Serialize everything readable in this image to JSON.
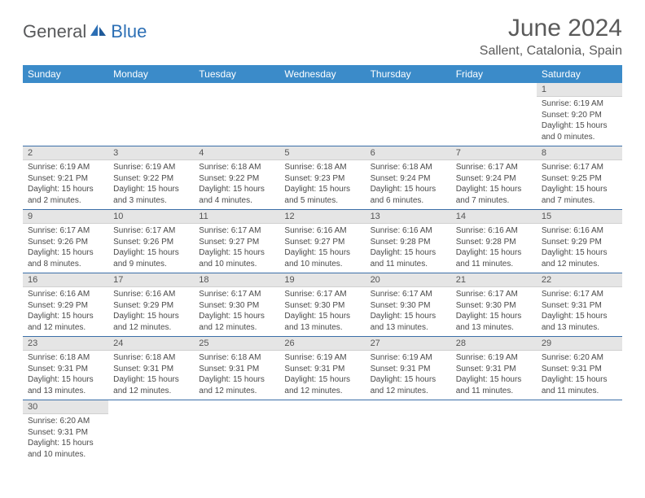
{
  "logo": {
    "text_gray": "General",
    "text_blue": "Blue"
  },
  "title": "June 2024",
  "location": "Sallent, Catalonia, Spain",
  "day_headers": [
    "Sunday",
    "Monday",
    "Tuesday",
    "Wednesday",
    "Thursday",
    "Friday",
    "Saturday"
  ],
  "colors": {
    "header_bg": "#3b8bc9",
    "header_text": "#ffffff",
    "daynum_bg": "#e5e5e5",
    "border": "#3b6fa8",
    "text": "#4a4a4a",
    "title_text": "#5a5a5a"
  },
  "weeks": [
    [
      null,
      null,
      null,
      null,
      null,
      null,
      {
        "num": "1",
        "sunrise": "Sunrise: 6:19 AM",
        "sunset": "Sunset: 9:20 PM",
        "daylight1": "Daylight: 15 hours",
        "daylight2": "and 0 minutes."
      }
    ],
    [
      {
        "num": "2",
        "sunrise": "Sunrise: 6:19 AM",
        "sunset": "Sunset: 9:21 PM",
        "daylight1": "Daylight: 15 hours",
        "daylight2": "and 2 minutes."
      },
      {
        "num": "3",
        "sunrise": "Sunrise: 6:19 AM",
        "sunset": "Sunset: 9:22 PM",
        "daylight1": "Daylight: 15 hours",
        "daylight2": "and 3 minutes."
      },
      {
        "num": "4",
        "sunrise": "Sunrise: 6:18 AM",
        "sunset": "Sunset: 9:22 PM",
        "daylight1": "Daylight: 15 hours",
        "daylight2": "and 4 minutes."
      },
      {
        "num": "5",
        "sunrise": "Sunrise: 6:18 AM",
        "sunset": "Sunset: 9:23 PM",
        "daylight1": "Daylight: 15 hours",
        "daylight2": "and 5 minutes."
      },
      {
        "num": "6",
        "sunrise": "Sunrise: 6:18 AM",
        "sunset": "Sunset: 9:24 PM",
        "daylight1": "Daylight: 15 hours",
        "daylight2": "and 6 minutes."
      },
      {
        "num": "7",
        "sunrise": "Sunrise: 6:17 AM",
        "sunset": "Sunset: 9:24 PM",
        "daylight1": "Daylight: 15 hours",
        "daylight2": "and 7 minutes."
      },
      {
        "num": "8",
        "sunrise": "Sunrise: 6:17 AM",
        "sunset": "Sunset: 9:25 PM",
        "daylight1": "Daylight: 15 hours",
        "daylight2": "and 7 minutes."
      }
    ],
    [
      {
        "num": "9",
        "sunrise": "Sunrise: 6:17 AM",
        "sunset": "Sunset: 9:26 PM",
        "daylight1": "Daylight: 15 hours",
        "daylight2": "and 8 minutes."
      },
      {
        "num": "10",
        "sunrise": "Sunrise: 6:17 AM",
        "sunset": "Sunset: 9:26 PM",
        "daylight1": "Daylight: 15 hours",
        "daylight2": "and 9 minutes."
      },
      {
        "num": "11",
        "sunrise": "Sunrise: 6:17 AM",
        "sunset": "Sunset: 9:27 PM",
        "daylight1": "Daylight: 15 hours",
        "daylight2": "and 10 minutes."
      },
      {
        "num": "12",
        "sunrise": "Sunrise: 6:16 AM",
        "sunset": "Sunset: 9:27 PM",
        "daylight1": "Daylight: 15 hours",
        "daylight2": "and 10 minutes."
      },
      {
        "num": "13",
        "sunrise": "Sunrise: 6:16 AM",
        "sunset": "Sunset: 9:28 PM",
        "daylight1": "Daylight: 15 hours",
        "daylight2": "and 11 minutes."
      },
      {
        "num": "14",
        "sunrise": "Sunrise: 6:16 AM",
        "sunset": "Sunset: 9:28 PM",
        "daylight1": "Daylight: 15 hours",
        "daylight2": "and 11 minutes."
      },
      {
        "num": "15",
        "sunrise": "Sunrise: 6:16 AM",
        "sunset": "Sunset: 9:29 PM",
        "daylight1": "Daylight: 15 hours",
        "daylight2": "and 12 minutes."
      }
    ],
    [
      {
        "num": "16",
        "sunrise": "Sunrise: 6:16 AM",
        "sunset": "Sunset: 9:29 PM",
        "daylight1": "Daylight: 15 hours",
        "daylight2": "and 12 minutes."
      },
      {
        "num": "17",
        "sunrise": "Sunrise: 6:16 AM",
        "sunset": "Sunset: 9:29 PM",
        "daylight1": "Daylight: 15 hours",
        "daylight2": "and 12 minutes."
      },
      {
        "num": "18",
        "sunrise": "Sunrise: 6:17 AM",
        "sunset": "Sunset: 9:30 PM",
        "daylight1": "Daylight: 15 hours",
        "daylight2": "and 12 minutes."
      },
      {
        "num": "19",
        "sunrise": "Sunrise: 6:17 AM",
        "sunset": "Sunset: 9:30 PM",
        "daylight1": "Daylight: 15 hours",
        "daylight2": "and 13 minutes."
      },
      {
        "num": "20",
        "sunrise": "Sunrise: 6:17 AM",
        "sunset": "Sunset: 9:30 PM",
        "daylight1": "Daylight: 15 hours",
        "daylight2": "and 13 minutes."
      },
      {
        "num": "21",
        "sunrise": "Sunrise: 6:17 AM",
        "sunset": "Sunset: 9:30 PM",
        "daylight1": "Daylight: 15 hours",
        "daylight2": "and 13 minutes."
      },
      {
        "num": "22",
        "sunrise": "Sunrise: 6:17 AM",
        "sunset": "Sunset: 9:31 PM",
        "daylight1": "Daylight: 15 hours",
        "daylight2": "and 13 minutes."
      }
    ],
    [
      {
        "num": "23",
        "sunrise": "Sunrise: 6:18 AM",
        "sunset": "Sunset: 9:31 PM",
        "daylight1": "Daylight: 15 hours",
        "daylight2": "and 13 minutes."
      },
      {
        "num": "24",
        "sunrise": "Sunrise: 6:18 AM",
        "sunset": "Sunset: 9:31 PM",
        "daylight1": "Daylight: 15 hours",
        "daylight2": "and 12 minutes."
      },
      {
        "num": "25",
        "sunrise": "Sunrise: 6:18 AM",
        "sunset": "Sunset: 9:31 PM",
        "daylight1": "Daylight: 15 hours",
        "daylight2": "and 12 minutes."
      },
      {
        "num": "26",
        "sunrise": "Sunrise: 6:19 AM",
        "sunset": "Sunset: 9:31 PM",
        "daylight1": "Daylight: 15 hours",
        "daylight2": "and 12 minutes."
      },
      {
        "num": "27",
        "sunrise": "Sunrise: 6:19 AM",
        "sunset": "Sunset: 9:31 PM",
        "daylight1": "Daylight: 15 hours",
        "daylight2": "and 12 minutes."
      },
      {
        "num": "28",
        "sunrise": "Sunrise: 6:19 AM",
        "sunset": "Sunset: 9:31 PM",
        "daylight1": "Daylight: 15 hours",
        "daylight2": "and 11 minutes."
      },
      {
        "num": "29",
        "sunrise": "Sunrise: 6:20 AM",
        "sunset": "Sunset: 9:31 PM",
        "daylight1": "Daylight: 15 hours",
        "daylight2": "and 11 minutes."
      }
    ],
    [
      {
        "num": "30",
        "sunrise": "Sunrise: 6:20 AM",
        "sunset": "Sunset: 9:31 PM",
        "daylight1": "Daylight: 15 hours",
        "daylight2": "and 10 minutes."
      },
      null,
      null,
      null,
      null,
      null,
      null
    ]
  ]
}
